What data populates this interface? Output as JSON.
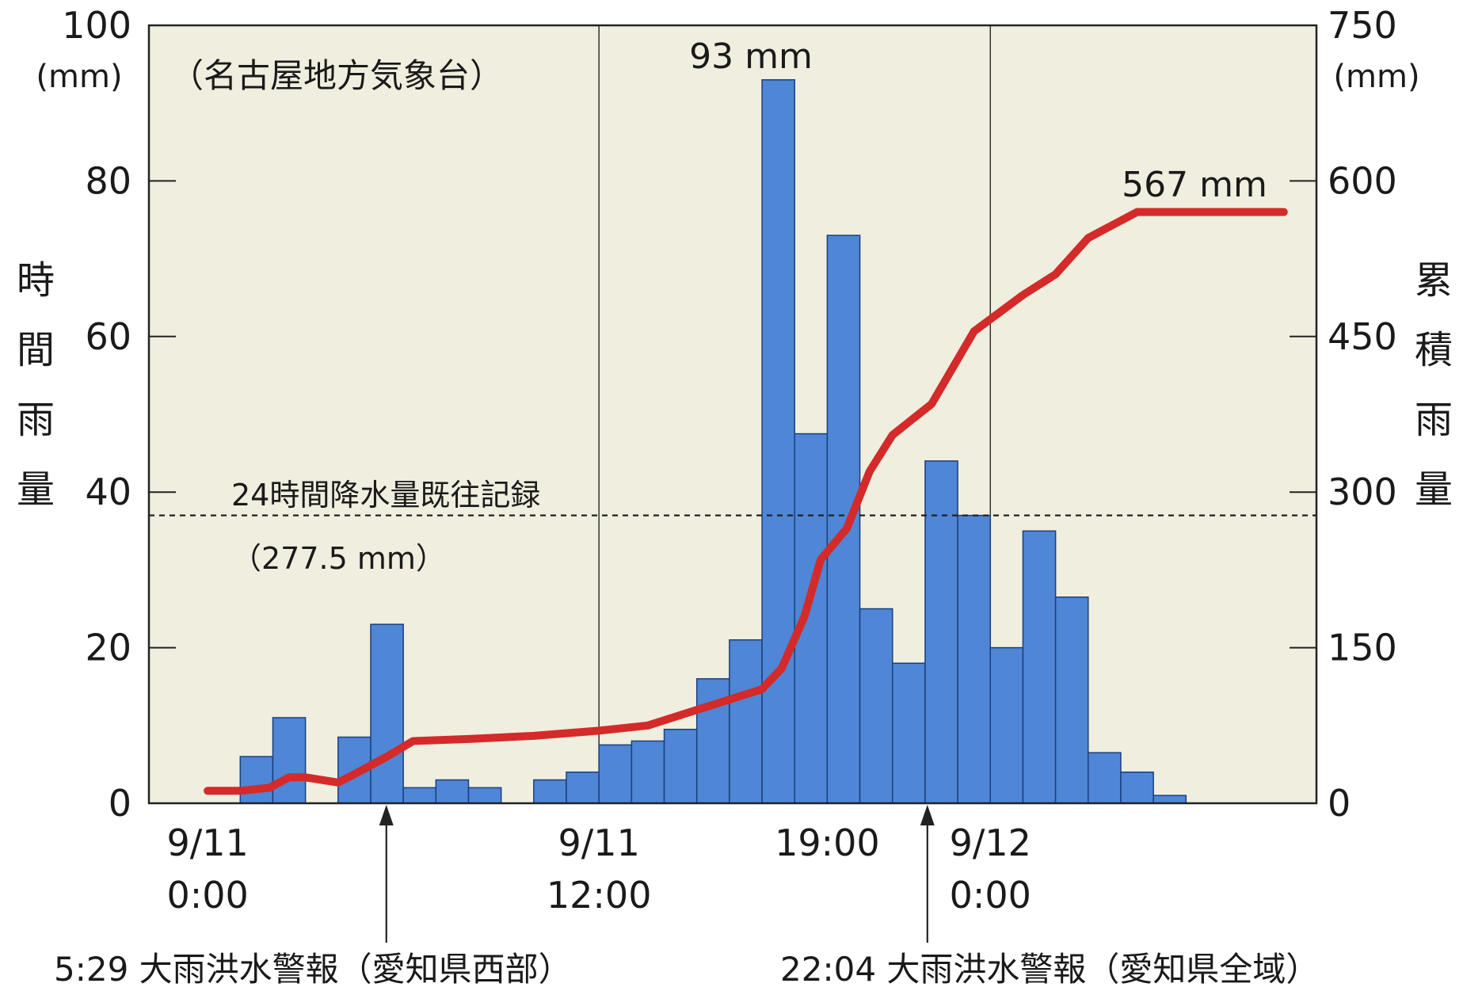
{
  "chart_data": {
    "type": "bar+line",
    "title": "（名古屋地方気象台）",
    "left_axis": {
      "label_chars": [
        "時",
        "間",
        "雨",
        "量"
      ],
      "unit": "(mm)",
      "range": [
        0,
        100
      ],
      "ticks": [
        "0",
        "20",
        "40",
        "60",
        "80",
        "100"
      ],
      "tick_values": [
        0,
        20,
        40,
        60,
        80,
        100
      ]
    },
    "right_axis": {
      "label_chars": [
        "累",
        "積",
        "雨",
        "量"
      ],
      "unit": "(mm)",
      "range": [
        0,
        750
      ],
      "ticks": [
        "0",
        "150",
        "300",
        "450",
        "600",
        "750"
      ],
      "tick_values": [
        0,
        150,
        300,
        450,
        600,
        750
      ]
    },
    "x_labels": [
      {
        "line1": "9/11",
        "line2": "0:00",
        "hour": 0
      },
      {
        "line1": "9/11",
        "line2": "12:00",
        "hour": 12
      },
      {
        "line1": "19:00",
        "line2": "",
        "hour": 19
      },
      {
        "line1": "9/12",
        "line2": "0:00",
        "hour": 24
      }
    ],
    "x_range_hours": [
      -1.8,
      34
    ],
    "hourly_series": {
      "name": "時間雨量",
      "color": "#4f86d6",
      "hours": [
        0,
        1,
        2,
        3,
        4,
        5,
        6,
        7,
        8,
        9,
        10,
        11,
        12,
        13,
        14,
        15,
        16,
        17,
        18,
        19,
        20,
        21,
        22,
        23,
        24,
        25,
        26,
        27,
        28,
        29,
        30,
        31,
        32
      ],
      "values": [
        0,
        0,
        6,
        11,
        0,
        8.5,
        23,
        2,
        3,
        2,
        0,
        3,
        4,
        7.5,
        8,
        9.5,
        16,
        21,
        93,
        47.5,
        73,
        25,
        18,
        44,
        37,
        20,
        35,
        26.5,
        6.5,
        4,
        1,
        0,
        0
      ]
    },
    "cumulative_series": {
      "name": "累積雨量",
      "color": "#d42a2a",
      "hours": [
        0,
        1,
        1.9,
        2.5,
        3,
        4,
        4.5,
        5.5,
        6.3,
        8,
        10,
        12,
        13.5,
        15,
        17,
        17.6,
        18.3,
        18.8,
        19.6,
        20.3,
        21,
        22.2,
        23.5,
        25,
        26,
        27,
        28.5,
        30.5,
        31.5,
        33
      ],
      "values": [
        12,
        12,
        15,
        25,
        25,
        20,
        28,
        45,
        60,
        62,
        65,
        70,
        75,
        90,
        110,
        130,
        180,
        235,
        265,
        320,
        355,
        385,
        455,
        490,
        510,
        545,
        570,
        570,
        570,
        570
      ]
    },
    "reference_line": {
      "label": "24時間降水量既往記録",
      "value_label": "（277.5 mm）",
      "value": 277.5
    },
    "annotations": {
      "peak_label": "93 mm",
      "total_label": "567 mm"
    },
    "warnings": [
      {
        "label": "5:29 大雨洪水警報（愛知県西部）",
        "hour": 5.48
      },
      {
        "label": "22:04 大雨洪水警報（愛知県全域）",
        "hour": 22.07
      }
    ],
    "grid": {
      "vertical_at_hours": [
        12,
        24,
        36
      ]
    },
    "colors": {
      "plot_background": "#efeedf",
      "bar": "#4f86d6",
      "bar_edge": "#1c3f7c",
      "line": "#d42a2a"
    }
  }
}
